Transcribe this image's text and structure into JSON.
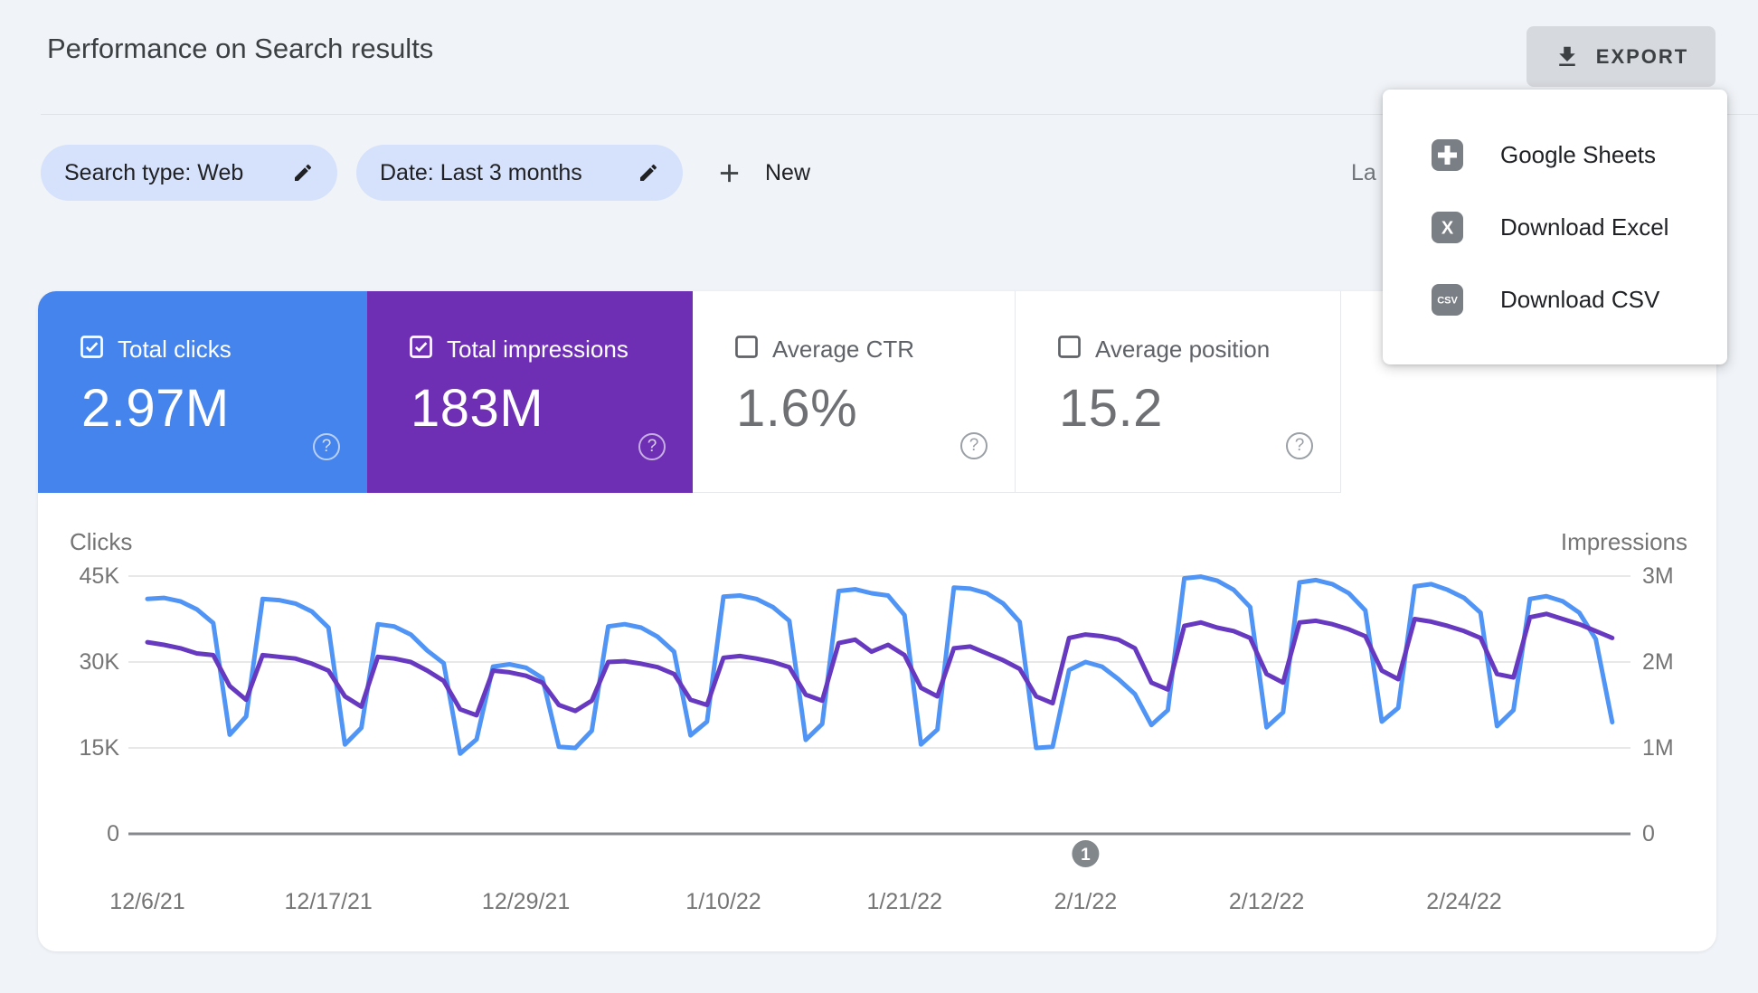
{
  "header": {
    "title": "Performance on Search results",
    "export_label": "EXPORT"
  },
  "filters": {
    "search_type_chip": "Search type: Web",
    "date_chip": "Date: Last 3 months",
    "new_button": "New",
    "clipped_text_right": "La"
  },
  "export_menu": {
    "items": [
      {
        "label": "Google Sheets",
        "icon": "google-sheets"
      },
      {
        "label": "Download Excel",
        "icon": "excel"
      },
      {
        "label": "Download CSV",
        "icon": "csv"
      }
    ]
  },
  "cards": [
    {
      "label": "Total clicks",
      "value": "2.97M",
      "checked": true,
      "color": "#4484EC"
    },
    {
      "label": "Total impressions",
      "value": "183M",
      "checked": true,
      "color": "#6E2FB5"
    },
    {
      "label": "Average CTR",
      "value": "1.6%",
      "checked": false,
      "color": "#FFFFFF"
    },
    {
      "label": "Average position",
      "value": "15.2",
      "checked": false,
      "color": "#FFFFFF"
    }
  ],
  "icons": {
    "help_glyph": "?"
  },
  "chart_data": {
    "type": "line",
    "start_date": "12/6/21",
    "frequency": "daily",
    "grid": true,
    "left_axis": {
      "label": "Clicks",
      "ticks": [
        "45K",
        "30K",
        "15K",
        "0"
      ],
      "max": 45,
      "unit": "thousands"
    },
    "right_axis": {
      "label": "Impressions",
      "ticks": [
        "3M",
        "2M",
        "1M",
        "0"
      ],
      "max": 3,
      "unit": "millions"
    },
    "x_tick_labels": [
      "12/6/21",
      "12/17/21",
      "12/29/21",
      "1/10/22",
      "1/21/22",
      "2/1/22",
      "2/12/22",
      "2/24/22"
    ],
    "x_tick_day_index": [
      0,
      11,
      23,
      35,
      46,
      57,
      68,
      80
    ],
    "annotation": {
      "label": "1",
      "day_index": 57,
      "date": "2/1/22"
    },
    "series": [
      {
        "name": "Clicks",
        "axis": "left",
        "color": "#5094F5",
        "unit": "thousands",
        "values": [
          41.0,
          41.2,
          40.6,
          39.2,
          36.8,
          17.3,
          20.5,
          41.0,
          40.8,
          40.2,
          38.8,
          36.0,
          15.6,
          18.5,
          36.6,
          36.2,
          34.8,
          32.0,
          29.8,
          14.0,
          16.5,
          29.2,
          29.6,
          29.0,
          27.2,
          15.2,
          15.0,
          18.0,
          36.2,
          36.6,
          36.0,
          34.4,
          31.8,
          17.2,
          19.6,
          41.4,
          41.6,
          41.0,
          39.6,
          37.2,
          16.4,
          19.2,
          42.4,
          42.7,
          42.0,
          41.6,
          38.2,
          15.6,
          18.2,
          43.0,
          42.8,
          42.0,
          40.2,
          37.0,
          15.0,
          15.2,
          28.6,
          30.0,
          29.2,
          27.0,
          24.4,
          19.0,
          21.6,
          44.6,
          44.9,
          44.2,
          42.6,
          39.6,
          18.6,
          21.2,
          43.9,
          44.3,
          43.6,
          42.0,
          39.0,
          19.6,
          22.0,
          43.2,
          43.6,
          42.6,
          41.2,
          38.6,
          18.8,
          21.6,
          41.0,
          41.5,
          40.6,
          38.6,
          34.0,
          19.5
        ]
      },
      {
        "name": "Impressions",
        "axis": "right",
        "color": "#6639C0",
        "unit": "millions",
        "values": [
          2.23,
          2.2,
          2.16,
          2.1,
          2.08,
          1.72,
          1.56,
          2.08,
          2.06,
          2.04,
          1.98,
          1.9,
          1.6,
          1.48,
          2.06,
          2.04,
          2.0,
          1.9,
          1.78,
          1.45,
          1.38,
          1.9,
          1.88,
          1.84,
          1.76,
          1.5,
          1.43,
          1.55,
          2.0,
          2.01,
          1.98,
          1.94,
          1.86,
          1.56,
          1.5,
          2.05,
          2.07,
          2.04,
          2.0,
          1.94,
          1.62,
          1.55,
          2.22,
          2.26,
          2.12,
          2.2,
          2.08,
          1.7,
          1.6,
          2.16,
          2.18,
          2.1,
          2.02,
          1.92,
          1.6,
          1.52,
          2.28,
          2.32,
          2.3,
          2.26,
          2.16,
          1.76,
          1.68,
          2.42,
          2.46,
          2.4,
          2.36,
          2.28,
          1.86,
          1.76,
          2.46,
          2.48,
          2.44,
          2.38,
          2.3,
          1.9,
          1.8,
          2.5,
          2.47,
          2.42,
          2.36,
          2.28,
          1.86,
          1.82,
          2.52,
          2.56,
          2.5,
          2.44,
          2.36,
          2.28
        ]
      }
    ]
  },
  "colors": {
    "page_background": "#F0F3F7",
    "card_clicks_blue": "#4484EC",
    "card_impressions_purple": "#6E2FB5",
    "line_clicks_blue": "#5094F5",
    "line_impressions_purple": "#6639C0",
    "chip_background": "#D6E2FB",
    "zero_axis_line": "#85898E",
    "gridline": "#E8E8E8"
  }
}
